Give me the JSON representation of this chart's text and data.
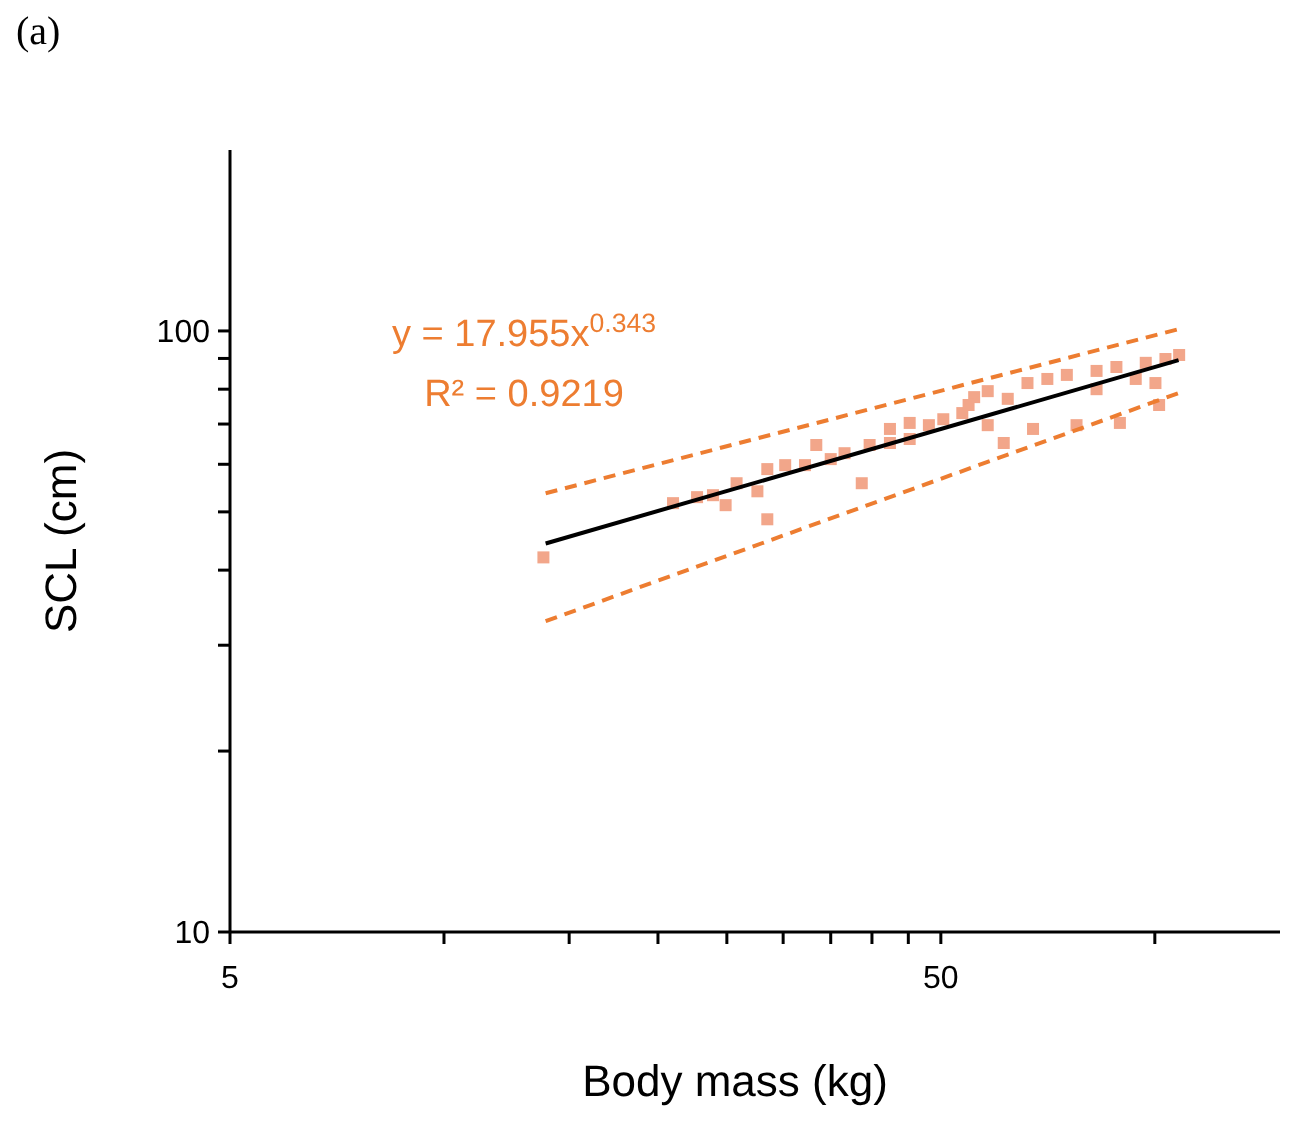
{
  "chart_data": {
    "type": "scatter",
    "title": "(a)",
    "xlabel": "Body mass (kg)",
    "ylabel": "SCL (cm)",
    "log": "xy",
    "grid": false,
    "xlim": [
      5,
      150
    ],
    "xticks": [
      5,
      {
        "value": 10,
        "label": null
      },
      {
        "value": 15,
        "label": null
      },
      {
        "value": 20,
        "label": null
      },
      {
        "value": 25,
        "label": null
      },
      {
        "value": 30,
        "label": null
      },
      {
        "value": 35,
        "label": null
      },
      {
        "value": 40,
        "label": null
      },
      {
        "value": 45,
        "label": null
      },
      50,
      {
        "value": 100,
        "label": null
      }
    ],
    "ylim": [
      10,
      200
    ],
    "yticks": [
      10,
      {
        "value": 20,
        "label": null
      },
      {
        "value": 30,
        "label": null
      },
      {
        "value": 40,
        "label": null
      },
      {
        "value": 50,
        "label": null
      },
      {
        "value": 60,
        "label": null
      },
      {
        "value": 70,
        "label": null
      },
      {
        "value": 80,
        "label": null
      },
      {
        "value": 90,
        "label": null
      },
      100
    ],
    "annotations": [
      "y = 17.955x$^{0.343}$",
      "R² = 0.9219"
    ],
    "series": [
      {
        "marker": "square",
        "color": "#f2a68a",
        "x": [
          13.8,
          21.0,
          22.7,
          23.9,
          24.9,
          25.8,
          27.6,
          28.5,
          28.5,
          30.2,
          32.2,
          33.4,
          35.0,
          36.6,
          38.7,
          39.7,
          42.4,
          45.2,
          48.1,
          50.4,
          53.6,
          55.7,
          58.2,
          61.3,
          67.4,
          77.6,
          89.3,
          101.4,
          58.2,
          66.2,
          70.6,
          75.2,
          82.8,
          88.3,
          97.1,
          103.5,
          108.2,
          82.8,
          94.0,
          100.2,
          62.1,
          54.7,
          45.2,
          42.4
        ],
        "values": [
          42.0,
          51.7,
          52.9,
          53.3,
          51.3,
          55.8,
          54.1,
          48.6,
          58.9,
          59.8,
          59.8,
          64.6,
          61.2,
          62.6,
          55.8,
          64.6,
          65.1,
          66.1,
          69.7,
          71.3,
          73.0,
          77.6,
          69.7,
          65.1,
          68.7,
          69.7,
          70.3,
          75.3,
          79.4,
          81.9,
          83.2,
          84.5,
          85.8,
          87.1,
          88.5,
          89.8,
          91.2,
          80.0,
          83.2,
          81.9,
          77.1,
          75.3,
          70.3,
          68.7
        ]
      },
      {
        "type": "line",
        "color": "#000000",
        "line_style": "solid",
        "marker": "none",
        "x": [
          13.9,
          108
        ],
        "values": [
          44.3,
          89.4
        ]
      },
      {
        "type": "line",
        "color": "#ed7d31",
        "line_style": "dashed",
        "marker": "none",
        "x": [
          13.9,
          108
        ],
        "values": [
          53.7,
          100.7
        ]
      },
      {
        "type": "line",
        "color": "#ed7d31",
        "line_style": "dashed",
        "marker": "none",
        "x": [
          13.9,
          108
        ],
        "values": [
          32.9,
          78.8
        ]
      }
    ]
  }
}
